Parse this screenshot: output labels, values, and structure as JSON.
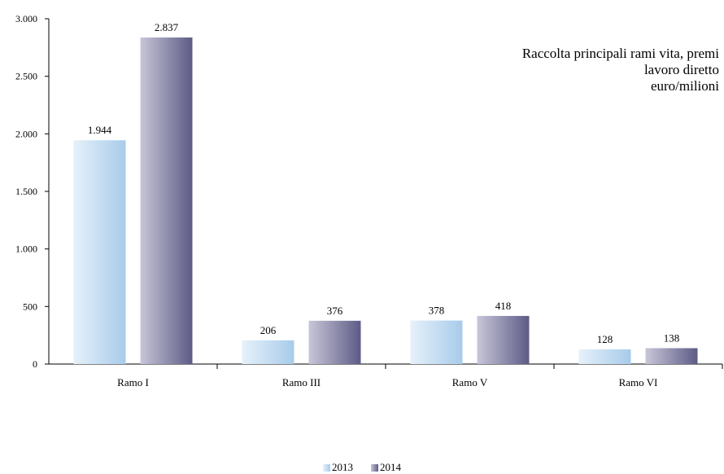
{
  "chart_data": {
    "type": "bar",
    "title_lines": [
      "Raccolta principali rami vita, premi",
      "lavoro diretto",
      "euro/milioni"
    ],
    "categories": [
      "Ramo I",
      "Ramo III",
      "Ramo V",
      "Ramo VI"
    ],
    "series": [
      {
        "name": "2013",
        "values": [
          1944,
          206,
          378,
          128
        ],
        "labels": [
          "1.944",
          "206",
          "378",
          "128"
        ],
        "color_light": "#e6f1fa",
        "color_dark": "#a7cbea"
      },
      {
        "name": "2014",
        "values": [
          2837,
          376,
          418,
          138
        ],
        "labels": [
          "2.837",
          "376",
          "418",
          "138"
        ],
        "color_light": "#c8c6d8",
        "color_dark": "#5d5b86"
      }
    ],
    "y_ticks": [
      0,
      500,
      1000,
      1500,
      2000,
      2500,
      3000
    ],
    "y_tick_labels": [
      "0",
      "500",
      "1.000",
      "1.500",
      "2.000",
      "2.500",
      "3.000"
    ],
    "ylim": [
      0,
      3000
    ],
    "grid": false,
    "legend_position": "bottom"
  }
}
